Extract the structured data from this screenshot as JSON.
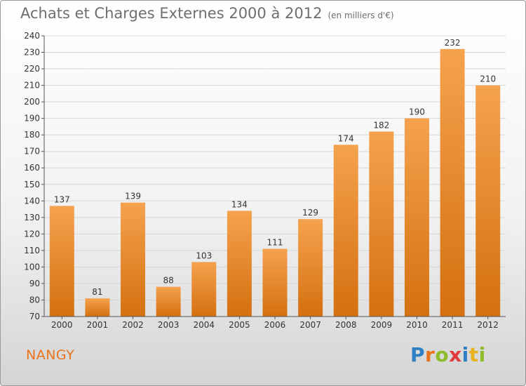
{
  "header": {
    "title": "Achats et Charges Externes 2000 à 2012",
    "unit": "(en milliers d'€)"
  },
  "footer": {
    "commune": "NANGY",
    "logo_letters": [
      "P",
      "r",
      "o",
      "x",
      "i",
      "t",
      "i"
    ],
    "logo_colors": [
      "#2f7fc4",
      "#e8731c",
      "#8dbb2a",
      "#e23a3a",
      "#2f7fc4",
      "#e8b21c",
      "#8dbb2a"
    ]
  },
  "colors": {
    "bar_light": "#f5a24e",
    "bar_dark": "#d4700f",
    "grid": "#d6d6d6",
    "axis": "#555555"
  },
  "chart_data": {
    "type": "bar",
    "categories": [
      "2000",
      "2001",
      "2002",
      "2003",
      "2004",
      "2005",
      "2006",
      "2007",
      "2008",
      "2009",
      "2010",
      "2011",
      "2012"
    ],
    "values": [
      137,
      81,
      139,
      88,
      103,
      134,
      111,
      129,
      174,
      182,
      190,
      232,
      210
    ],
    "ylim": [
      70,
      240
    ],
    "yticks": [
      70,
      80,
      90,
      100,
      110,
      120,
      130,
      140,
      150,
      160,
      170,
      180,
      190,
      200,
      210,
      220,
      230,
      240
    ],
    "grid": true,
    "legend": "none"
  }
}
